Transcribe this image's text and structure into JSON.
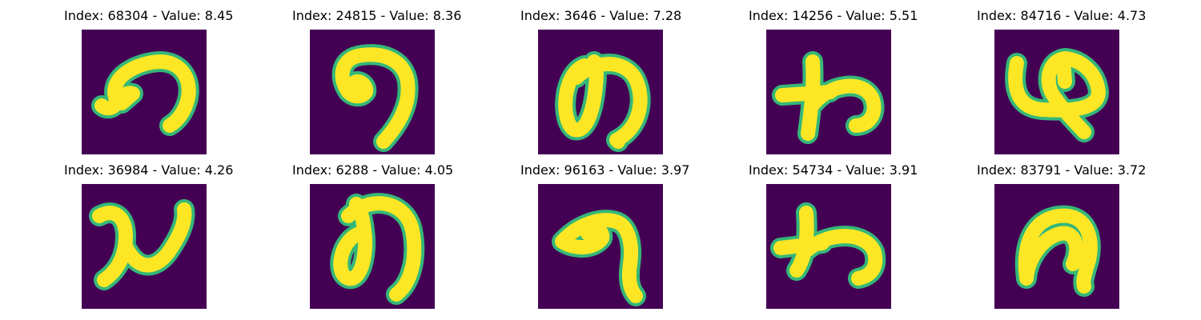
{
  "background_color": "#440154",
  "stroke_color": "#fde725",
  "edge_color": "#35b779",
  "panels": [
    {
      "title": "Index: 68304 - Value: 8.45",
      "glyph": "handwritten-character-image"
    },
    {
      "title": "Index: 24815 - Value: 8.36",
      "glyph": "handwritten-character-image"
    },
    {
      "title": "Index: 3646 - Value: 7.28",
      "glyph": "handwritten-character-image"
    },
    {
      "title": "Index: 14256 - Value: 5.51",
      "glyph": "handwritten-character-image"
    },
    {
      "title": "Index: 84716 - Value: 4.73",
      "glyph": "handwritten-character-image"
    },
    {
      "title": "Index: 36984 - Value: 4.26",
      "glyph": "handwritten-character-image"
    },
    {
      "title": "Index: 6288 - Value: 4.05",
      "glyph": "handwritten-character-image"
    },
    {
      "title": "Index: 96163 - Value: 3.97",
      "glyph": "handwritten-character-image"
    },
    {
      "title": "Index: 54734 - Value: 3.91",
      "glyph": "handwritten-character-image"
    },
    {
      "title": "Index: 83791 - Value: 3.72",
      "glyph": "handwritten-character-image"
    }
  ]
}
